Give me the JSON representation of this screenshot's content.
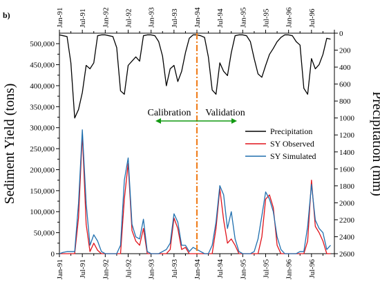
{
  "panel_label": "b)",
  "chart_data": {
    "type": "line",
    "x_ticks": [
      "Jan-91",
      "Jul-91",
      "Jan-92",
      "Jul-92",
      "Jan-93",
      "Jul-93",
      "Jan-94",
      "Jul-94",
      "Jan-95",
      "Jul-95",
      "Jan-96",
      "Jul-96"
    ],
    "x_start": "Jan-91",
    "x_end": "Dec-96",
    "ylabel": "Sediment Yield (tons)",
    "y2label": "Precipitation (mm)",
    "ylim": [
      0,
      525000
    ],
    "y_ticks": [
      "0",
      "50,000",
      "100,000",
      "150,000",
      "200,000",
      "250,000",
      "300,000",
      "350,000",
      "400,000",
      "450,000",
      "500,000"
    ],
    "y2lim": [
      0,
      2600
    ],
    "y2_inverted": true,
    "y2_ticks": [
      "0",
      "200",
      "400",
      "600",
      "800",
      "1000",
      "1200",
      "1400",
      "1600",
      "1800",
      "2000",
      "2200",
      "2400",
      "2600"
    ],
    "divider_at": "Jan-94",
    "divider_color": "#F08020",
    "annotations": {
      "left": "Calibration",
      "right": "Validation",
      "arrow_color": "#119911"
    },
    "legend_position": "center-right",
    "series": [
      {
        "name": "Precipitation",
        "axis": "right",
        "color": "#000000",
        "values": [
          20,
          30,
          40,
          350,
          1000,
          900,
          700,
          380,
          420,
          350,
          30,
          20,
          20,
          30,
          40,
          170,
          680,
          720,
          380,
          330,
          280,
          330,
          30,
          20,
          20,
          30,
          100,
          270,
          620,
          420,
          380,
          570,
          450,
          230,
          60,
          20,
          20,
          30,
          50,
          280,
          670,
          720,
          350,
          450,
          500,
          230,
          30,
          20,
          20,
          30,
          100,
          300,
          480,
          520,
          380,
          250,
          180,
          100,
          50,
          20,
          20,
          30,
          100,
          140,
          650,
          720,
          300,
          420,
          370,
          250,
          60,
          70
        ]
      },
      {
        "name": "SY Observed",
        "axis": "left",
        "color": "#E0121A",
        "values": [
          0,
          0,
          0,
          0,
          0,
          85000,
          285000,
          70000,
          5000,
          25000,
          8000,
          0,
          0,
          0,
          0,
          0,
          0,
          130000,
          215000,
          55000,
          30000,
          20000,
          60000,
          0,
          0,
          0,
          0,
          0,
          0,
          10000,
          85000,
          60000,
          10000,
          15000,
          0,
          0,
          0,
          0,
          0,
          0,
          0,
          60000,
          155000,
          80000,
          25000,
          35000,
          20000,
          0,
          0,
          0,
          0,
          0,
          0,
          40000,
          130000,
          140000,
          110000,
          20000,
          0,
          0,
          0,
          0,
          0,
          0,
          0,
          30000,
          175000,
          65000,
          50000,
          30000,
          0,
          0
        ]
      },
      {
        "name": "SY Simulated",
        "axis": "left",
        "color": "#1F6FAE",
        "values": [
          0,
          3000,
          5000,
          5000,
          5000,
          120000,
          295000,
          120000,
          20000,
          45000,
          30000,
          5000,
          0,
          0,
          0,
          0,
          20000,
          175000,
          228000,
          70000,
          40000,
          35000,
          82000,
          5000,
          0,
          0,
          0,
          5000,
          10000,
          25000,
          95000,
          75000,
          20000,
          20000,
          5000,
          15000,
          10000,
          5000,
          0,
          0,
          20000,
          75000,
          162000,
          140000,
          60000,
          100000,
          35000,
          5000,
          0,
          0,
          0,
          5000,
          35000,
          90000,
          147000,
          130000,
          100000,
          40000,
          10000,
          0,
          0,
          0,
          0,
          5000,
          5000,
          65000,
          165000,
          80000,
          60000,
          50000,
          10000,
          20000
        ]
      }
    ]
  }
}
